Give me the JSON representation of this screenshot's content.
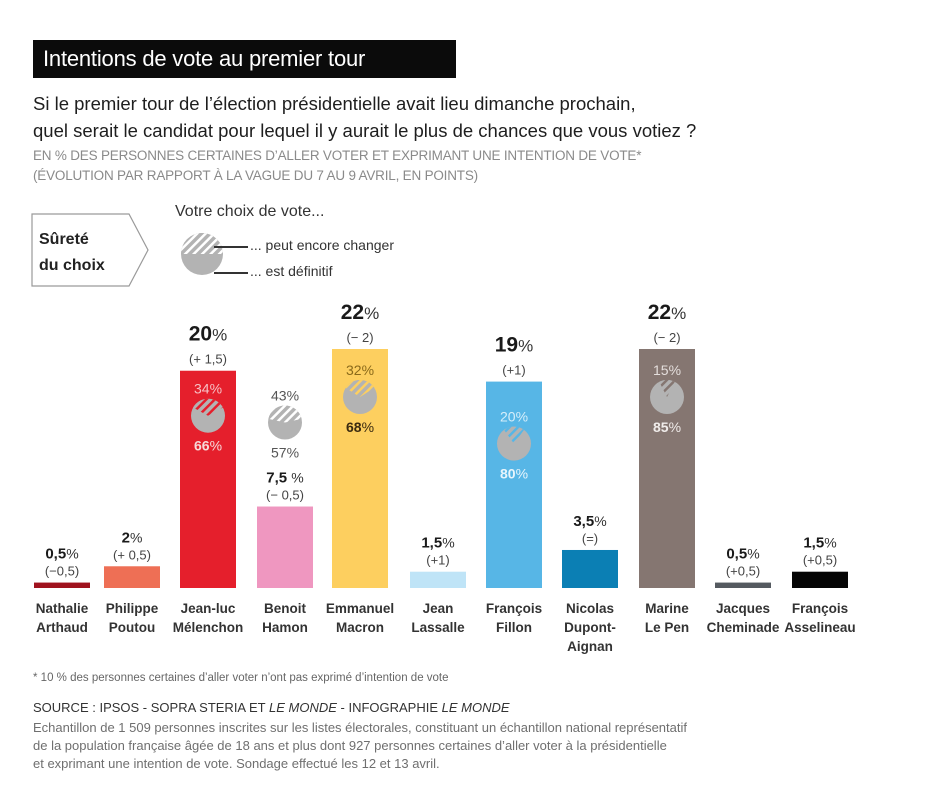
{
  "header": {
    "title": "Intentions de vote au premier tour",
    "question_line1": "Si le premier tour de l’élection présidentielle avait lieu dimanche prochain,",
    "question_line2": "quel serait le candidat pour lequel il y aurait le plus de chances que vous votiez ?",
    "subtitle_line1": "EN % DES PERSONNES CERTAINES D’ALLER VOTER ET EXPRIMANT UNE INTENTION DE VOTE*",
    "subtitle_line2": "(ÉVOLUTION PAR RAPPORT À LA VAGUE DU 7 AU 9 AVRIL, EN POINTS)"
  },
  "legend": {
    "tag_line1": "Sûreté",
    "tag_line2": "du choix",
    "heading": "Votre choix de vote...",
    "may_change": "... peut encore changer",
    "definitive": "... est définitif"
  },
  "chart_data": {
    "type": "bar",
    "title": "Intentions de vote au premier tour",
    "xlabel": "",
    "ylabel": "% des personnes certaines d'aller voter et exprimant une intention de vote",
    "ylim": [
      0,
      22
    ],
    "grid": false,
    "categories": [
      "Nathalie Arthaud",
      "Philippe Poutou",
      "Jean-luc Mélenchon",
      "Benoit Hamon",
      "Emmanuel Macron",
      "Jean Lassalle",
      "François Fillon",
      "Nicolas Dupont-Aignan",
      "Marine Le Pen",
      "Jacques Cheminade",
      "François Asselineau"
    ],
    "candidates": [
      {
        "name_line1": "Nathalie",
        "name_line2": "Arthaud",
        "name_line3": "",
        "value": 0.5,
        "value_label": "0,5",
        "change": "(−0,5)",
        "color": "#a0121e"
      },
      {
        "name_line1": "Philippe",
        "name_line2": "Poutou",
        "name_line3": "",
        "value": 2,
        "value_label": "2",
        "change": "(+ 0,5)",
        "color": "#ee6f55"
      },
      {
        "name_line1": "Jean-luc",
        "name_line2": "Mélenchon",
        "name_line3": "",
        "value": 20,
        "value_label": "20",
        "change": "(+ 1,5)",
        "color": "#e51f2c",
        "may_change": 34,
        "definitive": 66,
        "pie_inside": true,
        "text_color": "#f6c0c4",
        "def_text_color": "#f6dada"
      },
      {
        "name_line1": "Benoit",
        "name_line2": "Hamon",
        "name_line3": "",
        "value": 7.5,
        "value_label": "7,5 ",
        "change": "(− 0,5)",
        "color": "#ef97c0",
        "may_change": 43,
        "definitive": 57,
        "pie_inside": false,
        "text_color": "#555555",
        "def_text_color": "#555555"
      },
      {
        "name_line1": "Emmanuel",
        "name_line2": "Macron",
        "name_line3": "",
        "value": 22,
        "value_label": "22",
        "change": "(− 2)",
        "color": "#fdcf5f",
        "may_change": 32,
        "definitive": 68,
        "pie_inside": true,
        "text_color": "#8a6a1a",
        "def_text_color": "#3a2a10"
      },
      {
        "name_line1": "Jean",
        "name_line2": "Lassalle",
        "name_line3": "",
        "value": 1.5,
        "value_label": "1,5",
        "change": "(+1)",
        "color": "#bfe4f7"
      },
      {
        "name_line1": "François",
        "name_line2": "Fillon",
        "name_line3": "",
        "value": 19,
        "value_label": "19",
        "change": "(+1)",
        "color": "#57b6e6",
        "may_change": 20,
        "definitive": 80,
        "pie_inside": true,
        "text_color": "#d6eefa",
        "def_text_color": "#e8f5fc"
      },
      {
        "name_line1": "Nicolas",
        "name_line2": "Dupont-",
        "name_line3": "Aignan",
        "value": 3.5,
        "value_label": "3,5",
        "change": "(=)",
        "color": "#0b7fb4"
      },
      {
        "name_line1": "Marine",
        "name_line2": "Le Pen",
        "name_line3": "",
        "value": 22,
        "value_label": "22",
        "change": "(− 2)",
        "color": "#857671",
        "may_change": 15,
        "definitive": 85,
        "pie_inside": true,
        "text_color": "#e4dedc",
        "def_text_color": "#f0ecea"
      },
      {
        "name_line1": "Jacques",
        "name_line2": "Cheminade",
        "name_line3": "",
        "value": 0.5,
        "value_label": "0,5",
        "change": "(+0,5)",
        "color": "#555a60"
      },
      {
        "name_line1": "François",
        "name_line2": "Asselineau",
        "name_line3": "",
        "value": 1.5,
        "value_label": "1,5",
        "change": "(+0,5)",
        "color": "#050505"
      }
    ],
    "values": [
      0.5,
      2,
      20,
      7.5,
      22,
      1.5,
      19,
      3.5,
      22,
      0.5,
      1.5
    ],
    "pie_series": [
      {
        "name": "... peut encore changer",
        "values": {
          "Jean-luc Mélenchon": 34,
          "Benoit Hamon": 43,
          "Emmanuel Macron": 32,
          "François Fillon": 20,
          "Marine Le Pen": 15
        }
      },
      {
        "name": "... est définitif",
        "values": {
          "Jean-luc Mélenchon": 66,
          "Benoit Hamon": 57,
          "Emmanuel Macron": 68,
          "François Fillon": 80,
          "Marine Le Pen": 85
        }
      }
    ],
    "percent_sign": "%"
  },
  "footer": {
    "footnote": "* 10 % des personnes certaines d’aller voter n’ont pas exprimé d’intention de vote",
    "source_prefix": "SOURCE : IPSOS - SOPRA STERIA ET ",
    "source_italic1": "LE MONDE",
    "source_mid": " - INFOGRAPHIE ",
    "source_italic2": "LE MONDE",
    "sample_line1": "Echantillon de 1 509 personnes inscrites sur les listes électorales, constituant un échantillon national représentatif",
    "sample_line2": "de la population française âgée de 18 ans et plus dont 927 personnes certaines d’aller voter à la présidentielle",
    "sample_line3": "et exprimant une intention de vote. Sondage effectué les 12 et 13 avril."
  }
}
